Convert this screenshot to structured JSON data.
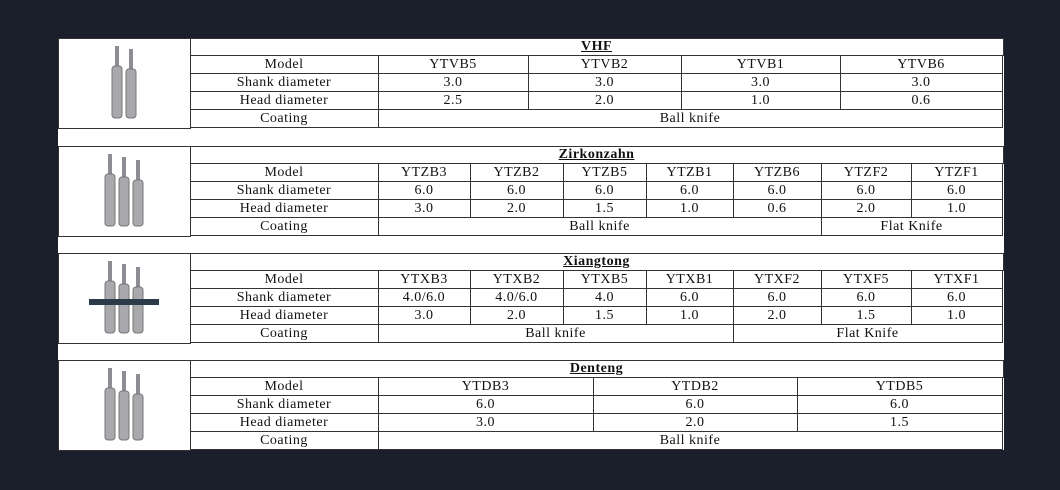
{
  "sections": [
    {
      "title": "VHF",
      "rows": [
        {
          "label": "Model",
          "values": [
            "YTVB5",
            "YTVB2",
            "YTVB1",
            "YTVB6"
          ]
        },
        {
          "label": "Shank diameter",
          "values": [
            "3.0",
            "3.0",
            "3.0",
            "3.0"
          ]
        },
        {
          "label": "Head diameter",
          "values": [
            "2.5",
            "2.0",
            "1.0",
            "0.6"
          ]
        }
      ],
      "coating": {
        "label": "Coating",
        "values": [
          "Ball knife"
        ]
      }
    },
    {
      "title": "Zirkonzahn",
      "rows": [
        {
          "label": "Model",
          "values": [
            "YTZB3",
            "YTZB2",
            "YTZB5",
            "YTZB1",
            "YTZB6",
            "YTZF2",
            "YTZF1"
          ]
        },
        {
          "label": "Shank diameter",
          "values": [
            "6.0",
            "6.0",
            "6.0",
            "6.0",
            "6.0",
            "6.0",
            "6.0"
          ]
        },
        {
          "label": "Head diameter",
          "values": [
            "3.0",
            "2.0",
            "1.5",
            "1.0",
            "0.6",
            "2.0",
            "1.0"
          ]
        }
      ],
      "coating": {
        "label": "Coating",
        "values": [
          "Ball knife",
          "Flat Knife"
        ]
      }
    },
    {
      "title": "Xiangtong",
      "rows": [
        {
          "label": "Model",
          "values": [
            "YTXB3",
            "YTXB2",
            "YTXB5",
            "YTXB1",
            "YTXF2",
            "YTXF5",
            "YTXF1"
          ]
        },
        {
          "label": "Shank diameter",
          "values": [
            "4.0/6.0",
            "4.0/6.0",
            "4.0",
            "6.0",
            "6.0",
            "6.0",
            "6.0"
          ]
        },
        {
          "label": "Head diameter",
          "values": [
            "3.0",
            "2.0",
            "1.5",
            "1.0",
            "2.0",
            "1.5",
            "1.0"
          ]
        }
      ],
      "coating": {
        "label": "Coating",
        "values": [
          "Ball knife",
          "Flat Knife"
        ]
      }
    },
    {
      "title": "Denteng",
      "rows": [
        {
          "label": "Model",
          "values": [
            "YTDB3",
            "YTDB2",
            "YTDB5"
          ]
        },
        {
          "label": "Shank diameter",
          "values": [
            "6.0",
            "6.0",
            "6.0"
          ]
        },
        {
          "label": "Head diameter",
          "values": [
            "3.0",
            "2.0",
            "1.5"
          ]
        }
      ],
      "coating": {
        "label": "Coating",
        "values": [
          "Ball knife"
        ]
      }
    }
  ]
}
